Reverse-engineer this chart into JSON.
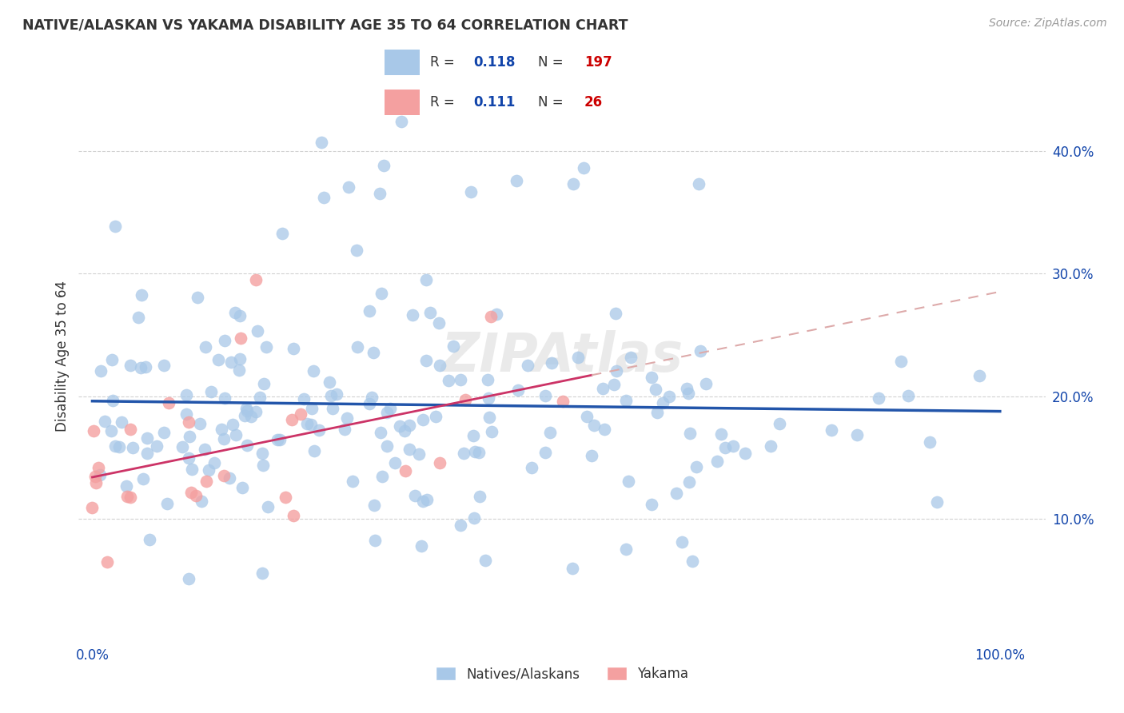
{
  "title": "NATIVE/ALASKAN VS YAKAMA DISABILITY AGE 35 TO 64 CORRELATION CHART",
  "source": "Source: ZipAtlas.com",
  "ylabel": "Disability Age 35 to 64",
  "blue_color": "#a8c8e8",
  "blue_line_color": "#2255aa",
  "pink_color": "#f4a0a0",
  "pink_line_color": "#cc3366",
  "pink_dash_color": "#ddaaaa",
  "R_blue": 0.118,
  "N_blue": 197,
  "R_pink": 0.111,
  "N_pink": 26,
  "background_color": "#ffffff",
  "legend_label_blue": "Natives/Alaskans",
  "legend_label_pink": "Yakama",
  "watermark": "ZIPAtlas",
  "value_color": "#1144aa",
  "count_color": "#cc0000",
  "title_color": "#333333",
  "ylabel_color": "#333333",
  "tick_color": "#1144aa",
  "source_color": "#999999",
  "grid_color": "#cccccc"
}
